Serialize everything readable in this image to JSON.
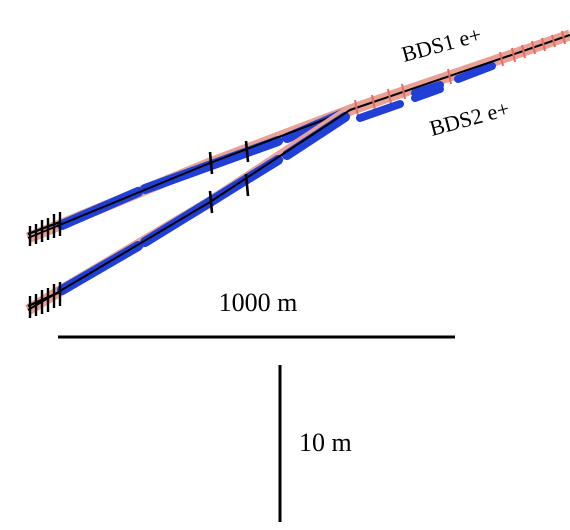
{
  "labels": {
    "bds1": "BDS1 e+",
    "bds2": "BDS2 e+"
  },
  "scale_bars": {
    "horizontal": "1000 m",
    "vertical": "10 m"
  },
  "colors": {
    "magnet_blue": "#1f3fd6",
    "magnet_red": "#e46c62",
    "beamline": "#000000"
  }
}
